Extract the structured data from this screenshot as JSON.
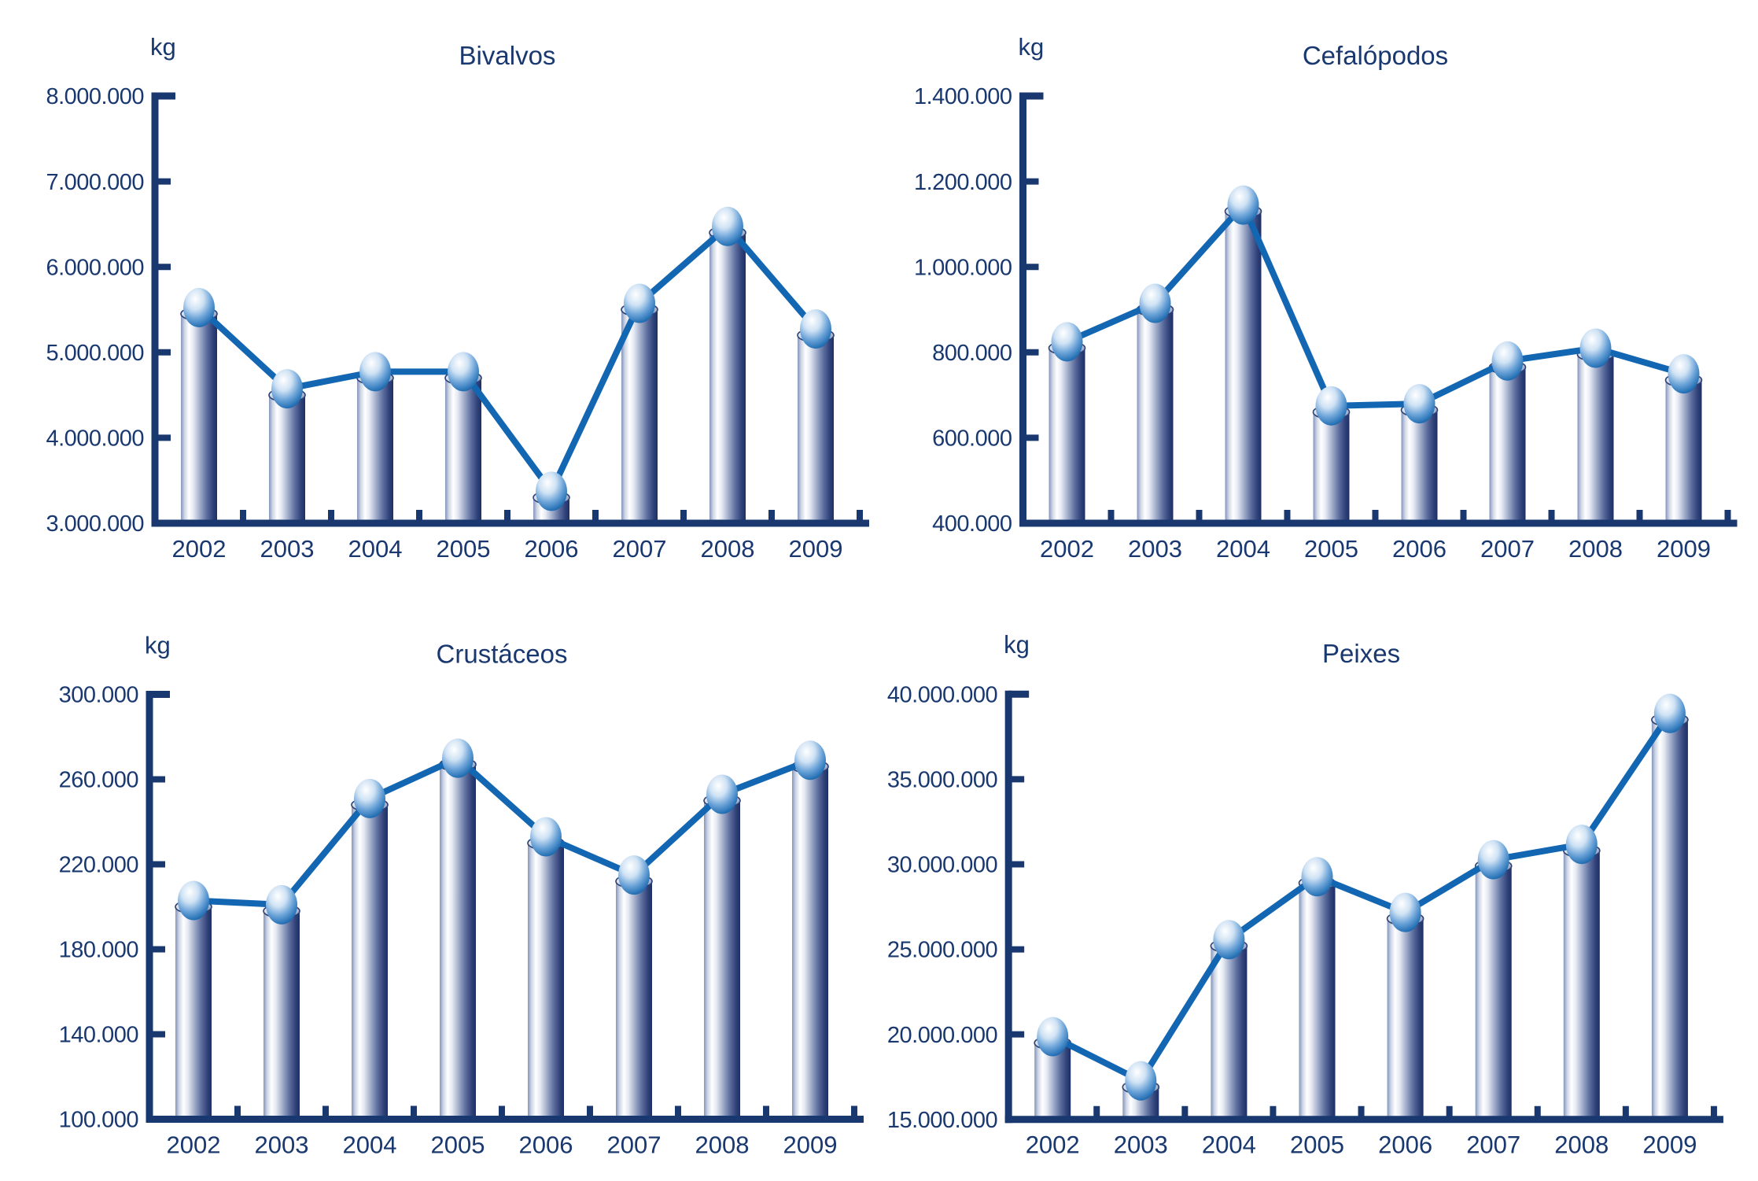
{
  "page": {
    "background": "#ffffff",
    "description": "Four cylinder-bar charts with overlaid line-and-sphere markers showing landed weight (kg) per year 2002-2009"
  },
  "colors": {
    "axis": "#19386f",
    "text": "#19386f",
    "series_line": "#1366b1",
    "bar_dark_edge": "#1d3066",
    "bar_mid": "#8494ba",
    "bar_highlight": "#ffffff",
    "sphere_light": "#ffffff",
    "sphere_mid": "#6ba3d8",
    "sphere_dark": "#1b5d9e"
  },
  "chart_data": [
    {
      "type": "bar",
      "subtype": "cylinder-bar-with-line-markers",
      "title": "Bivalvos",
      "unit_label": "kg",
      "categories": [
        "2002",
        "2003",
        "2004",
        "2005",
        "2006",
        "2007",
        "2008",
        "2009"
      ],
      "values": [
        5450000,
        4500000,
        4700000,
        4700000,
        3300000,
        5500000,
        6400000,
        5200000
      ],
      "ylim": [
        3000000,
        8000000
      ],
      "ytick_step": 1000000,
      "grid": false,
      "legend": "none"
    },
    {
      "type": "bar",
      "subtype": "cylinder-bar-with-line-markers",
      "title": "Cefalópodos",
      "unit_label": "kg",
      "categories": [
        "2002",
        "2003",
        "2004",
        "2005",
        "2006",
        "2007",
        "2008",
        "2009"
      ],
      "values": [
        810000,
        900000,
        1130000,
        660000,
        665000,
        765000,
        795000,
        735000
      ],
      "ylim": [
        400000,
        1400000
      ],
      "ytick_step": 200000,
      "grid": false,
      "legend": "none"
    },
    {
      "type": "bar",
      "subtype": "cylinder-bar-with-line-markers",
      "title": "Crustáceos",
      "unit_label": "kg",
      "categories": [
        "2002",
        "2003",
        "2004",
        "2005",
        "2006",
        "2007",
        "2008",
        "2009"
      ],
      "values": [
        200000,
        198000,
        248000,
        267000,
        230000,
        212000,
        250000,
        266000
      ],
      "ylim": [
        100000,
        300000
      ],
      "ytick_step": 40000,
      "grid": false,
      "legend": "none"
    },
    {
      "type": "bar",
      "subtype": "cylinder-bar-with-line-markers",
      "title": "Peixes",
      "unit_label": "kg",
      "categories": [
        "2002",
        "2003",
        "2004",
        "2005",
        "2006",
        "2007",
        "2008",
        "2009"
      ],
      "values": [
        19500000,
        16900000,
        25200000,
        28900000,
        26800000,
        29900000,
        30800000,
        38500000
      ],
      "ylim": [
        15000000,
        40000000
      ],
      "ytick_step": 5000000,
      "grid": false,
      "legend": "none"
    }
  ]
}
